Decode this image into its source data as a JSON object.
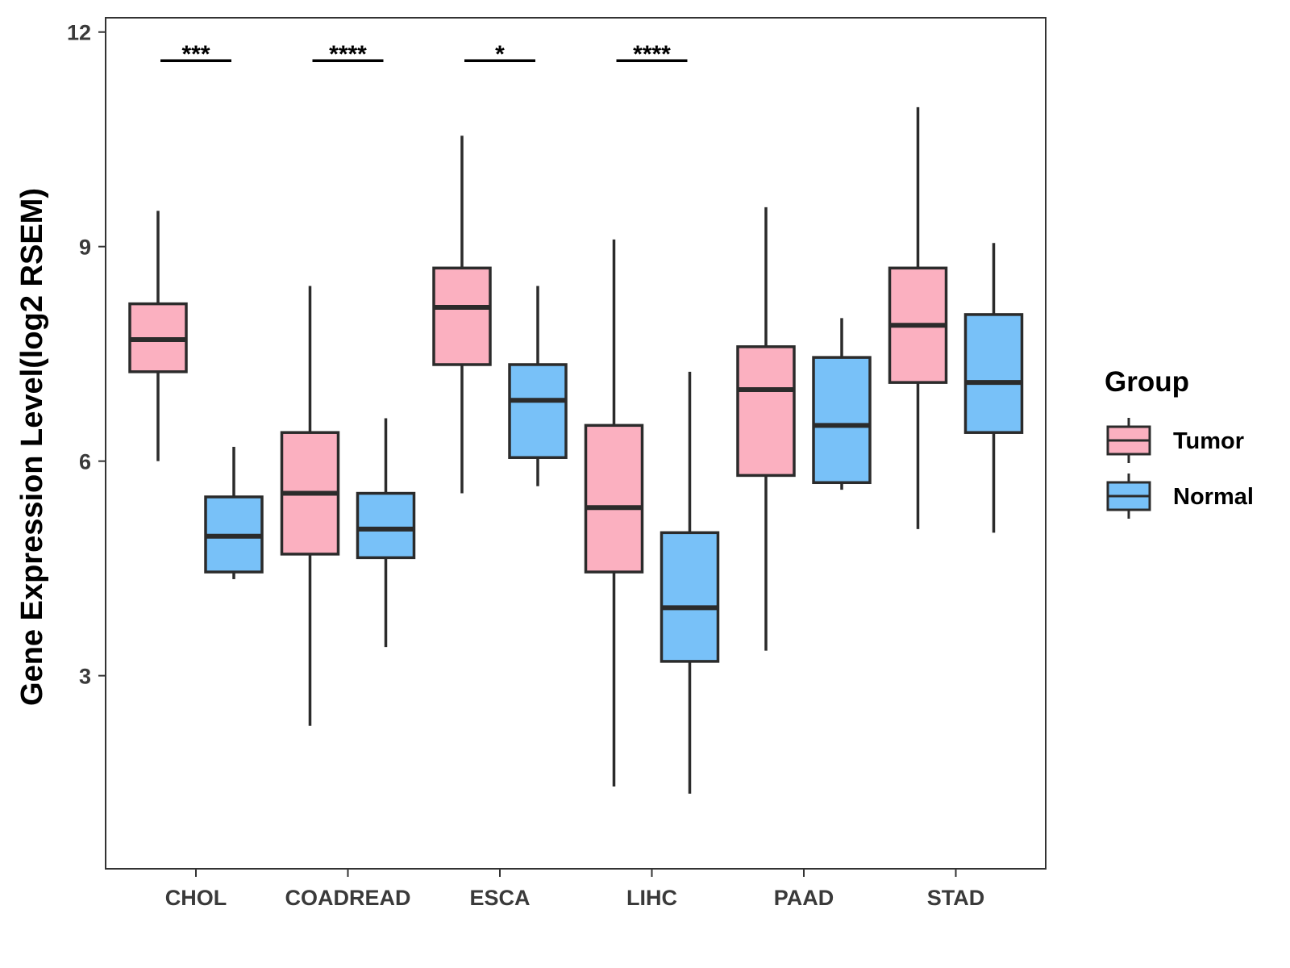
{
  "chart_data": {
    "type": "boxplot",
    "title": "",
    "xlabel": "",
    "ylabel": "Gene Expression Level(log2 RSEM)",
    "ylim": [
      0.3,
      12.2
    ],
    "yticks": [
      3,
      6,
      9,
      12
    ],
    "categories": [
      "CHOL",
      "COADREAD",
      "ESCA",
      "LIHC",
      "PAAD",
      "STAD"
    ],
    "legend": {
      "title": "Group",
      "position": "right",
      "entries": [
        "Tumor",
        "Normal"
      ]
    },
    "series": [
      {
        "name": "Tumor",
        "color": "#fbb0c0",
        "boxes": [
          {
            "min": 6.0,
            "q1": 7.25,
            "median": 7.7,
            "q3": 8.2,
            "max": 9.5
          },
          {
            "min": 2.3,
            "q1": 4.7,
            "median": 5.55,
            "q3": 6.4,
            "max": 8.45
          },
          {
            "min": 5.55,
            "q1": 7.35,
            "median": 8.15,
            "q3": 8.7,
            "max": 10.55
          },
          {
            "min": 1.45,
            "q1": 4.45,
            "median": 5.35,
            "q3": 6.5,
            "max": 9.1
          },
          {
            "min": 3.35,
            "q1": 5.8,
            "median": 7.0,
            "q3": 7.6,
            "max": 9.55
          },
          {
            "min": 5.05,
            "q1": 7.1,
            "median": 7.9,
            "q3": 8.7,
            "max": 10.95
          }
        ]
      },
      {
        "name": "Normal",
        "color": "#78c1f8",
        "boxes": [
          {
            "min": 4.35,
            "q1": 4.45,
            "median": 4.95,
            "q3": 5.5,
            "max": 6.2
          },
          {
            "min": 3.4,
            "q1": 4.65,
            "median": 5.05,
            "q3": 5.55,
            "max": 6.6
          },
          {
            "min": 5.65,
            "q1": 6.05,
            "median": 6.85,
            "q3": 7.35,
            "max": 8.45
          },
          {
            "min": 1.35,
            "q1": 3.2,
            "median": 3.95,
            "q3": 5.0,
            "max": 7.25
          },
          {
            "min": 5.6,
            "q1": 5.7,
            "median": 6.5,
            "q3": 7.45,
            "max": 8.0
          },
          {
            "min": 5.0,
            "q1": 6.4,
            "median": 7.1,
            "q3": 8.05,
            "max": 9.05
          }
        ]
      }
    ],
    "annotations": [
      {
        "category": "CHOL",
        "label": "***",
        "y": 11.6
      },
      {
        "category": "COADREAD",
        "label": "****",
        "y": 11.6
      },
      {
        "category": "ESCA",
        "label": "*",
        "y": 11.6
      },
      {
        "category": "LIHC",
        "label": "****",
        "y": 11.6
      }
    ]
  }
}
